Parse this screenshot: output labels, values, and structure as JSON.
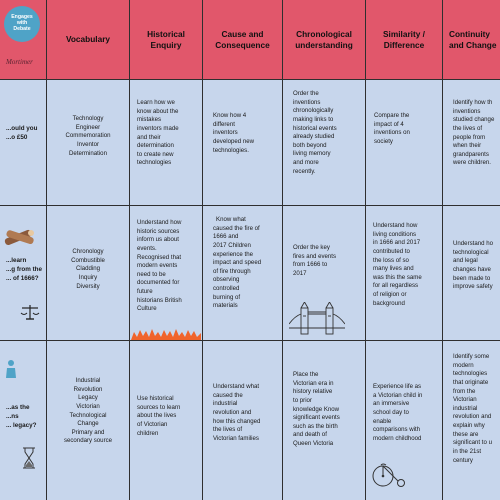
{
  "logo": {
    "line1": "Engages",
    "line2": "with",
    "line3": "Debate",
    "brand": "Mortimer"
  },
  "headers": [
    "Vocabulary",
    "Historical Enquiry",
    "Cause and Consequence",
    "Chronological understanding",
    "Similarity / Difference",
    "Continuity and Change"
  ],
  "rows": [
    {
      "question": [
        "...ould you",
        "...o £50"
      ],
      "cells": [
        [
          "Technology",
          "Engineer",
          "Commemoration",
          "Inventor",
          "Determination"
        ],
        [
          "Learn how we",
          "know about the",
          "mistakes",
          "inventors made",
          "and their",
          "determination",
          "to create new",
          "technologies"
        ],
        [
          "Know how 4",
          "different",
          "inventors",
          "developed new",
          "technologies."
        ],
        [
          "Order the",
          "inventions",
          "chronologically",
          "making links to",
          "historical events",
          "already studied",
          "both beyond",
          "living memory",
          "and more",
          "recently."
        ],
        [
          "Compare the",
          "impact of 4",
          "inventions on",
          "society"
        ],
        [
          "Identify how th",
          "inventions",
          "studied change",
          "the lives of",
          "people from",
          "when their",
          "grandparents",
          "were children."
        ]
      ]
    },
    {
      "question": [
        "...learn",
        "...g from the",
        "... of 1666?"
      ],
      "cells": [
        [
          "Chronology",
          "Combustible",
          "Cladding",
          "Inquiry",
          "Diversity"
        ],
        [
          "Understand how",
          "historic sources",
          "inform us about",
          "events.",
          "Recognised that",
          "modern events",
          "need to be",
          "documented for",
          "future",
          "historians British",
          "Culture"
        ],
        [
          "Know what",
          "caused the fire of",
          "1666 and",
          "2017 Children",
          "experience the",
          "impact and speed",
          "of fire through",
          "observing",
          "controlled",
          "burning of",
          "materials"
        ],
        [
          "Order the key",
          "fires and events",
          "from 1666 to",
          "2017"
        ],
        [
          "Understand how",
          "living conditions",
          "in 1666 and 2017",
          "contributed  to",
          "the loss of so",
          "many lives and",
          "was this the same",
          "for all regardless",
          "of religion or",
          "background"
        ],
        [
          "Understand ho",
          "technological",
          "and legal",
          "changes have",
          "been made to",
          "improve safety"
        ]
      ]
    },
    {
      "question": [
        "...as the",
        "...ns",
        "... legacy?"
      ],
      "cells": [
        [
          "Industrial",
          "Revolution",
          "Legacy",
          "Victorian",
          "Technological",
          "Change",
          "Primary and",
          "secondary source"
        ],
        [
          "Use historical",
          "sources to learn",
          "about the lives",
          "of Victorian",
          "children"
        ],
        [
          "Understand what",
          "caused the",
          "industrial",
          "revolution and",
          "how this changed",
          "the lives of",
          "Victorian families"
        ],
        [
          "Place the",
          "Victorian era in",
          "history relative",
          "to prior",
          "knowledge Know",
          "significant events",
          "such as the birth",
          "and death of",
          "Queen Victoria"
        ],
        [
          "Experience life as",
          "a Victorian child in",
          "an immersive",
          "school day to",
          "enable",
          "comparisons with",
          "modern childhood"
        ],
        [
          "Identify some",
          "modern",
          "technologies",
          "that originate",
          "from the",
          "Victorian",
          "industrial",
          "revolution and",
          "explain why",
          "these are",
          "significant to u",
          "in the 21st",
          "century"
        ]
      ]
    }
  ],
  "colors": {
    "header": "#e1576b",
    "body": "#c7d6ec",
    "grid": "#2f2f2f",
    "fire": "#f0642c"
  },
  "icons": [
    "logs-icon",
    "scales-icon",
    "tower-bridge-icon",
    "fire-icon",
    "hourglass-icon",
    "penny-farthing-icon",
    "person-icon"
  ]
}
